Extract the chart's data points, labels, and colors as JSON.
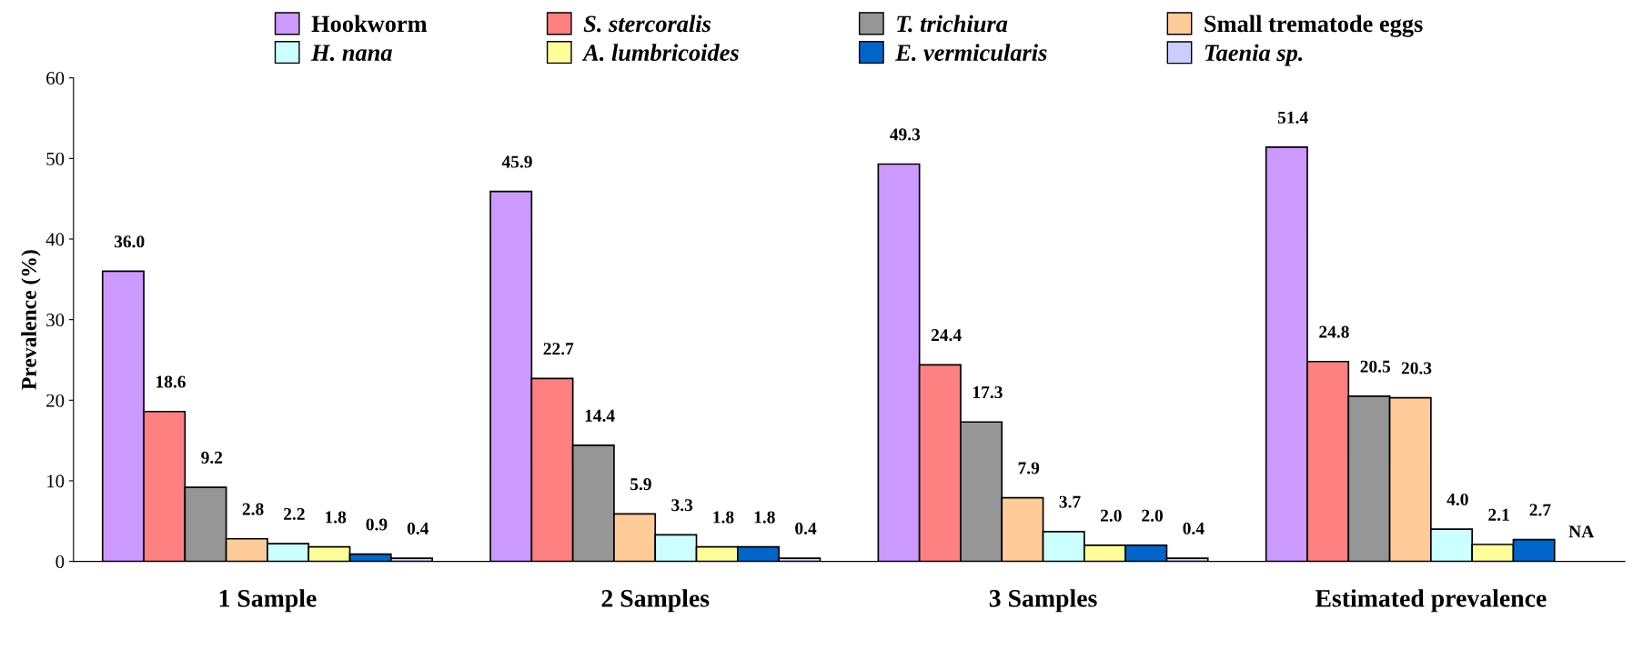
{
  "chart_data": {
    "type": "bar",
    "ylabel": "Prevalence (%)",
    "categories": [
      "1 Sample",
      "2 Samples",
      "3 Samples",
      "Estimated prevalence"
    ],
    "ylim": [
      0,
      60
    ],
    "yticks": [
      0,
      10,
      20,
      30,
      40,
      50,
      60
    ],
    "grid": false,
    "legend": "top",
    "series": [
      {
        "name": "Hookworm",
        "color": "#cc99ff",
        "values": [
          36.0,
          45.9,
          49.3,
          51.4
        ],
        "value_labels": [
          "36.0",
          "45.9",
          "49.3",
          "51.4"
        ]
      },
      {
        "name": "S. stercoralis",
        "color": "#ff8080",
        "values": [
          18.6,
          22.7,
          24.4,
          24.8
        ],
        "value_labels": [
          "18.6",
          "22.7",
          "24.4",
          "24.8"
        ]
      },
      {
        "name": "T. trichiura",
        "color": "#969696",
        "values": [
          9.2,
          14.4,
          17.3,
          20.5
        ],
        "value_labels": [
          "9.2",
          "14.4",
          "17.3",
          "20.5"
        ]
      },
      {
        "name": "Small trematode eggs",
        "color": "#ffcc99",
        "values": [
          2.8,
          5.9,
          7.9,
          20.3
        ],
        "value_labels": [
          "2.8",
          "5.9",
          "7.9",
          "20.3"
        ]
      },
      {
        "name": "H. nana",
        "color": "#ccffff",
        "values": [
          2.2,
          3.3,
          3.7,
          4.0
        ],
        "value_labels": [
          "2.2",
          "3.3",
          "3.7",
          "4.0"
        ]
      },
      {
        "name": "A. lumbricoides",
        "color": "#ffff99",
        "values": [
          1.8,
          1.8,
          2.0,
          2.1
        ],
        "value_labels": [
          "1.8",
          "1.8",
          "2.0",
          "2.1"
        ]
      },
      {
        "name": "E. vermicularis",
        "color": "#0066cc",
        "values": [
          0.9,
          1.8,
          2.0,
          2.7
        ],
        "value_labels": [
          "0.9",
          "1.8",
          "2.0",
          "2.7"
        ]
      },
      {
        "name": "Taenia sp.",
        "color": "#ccccff",
        "values": [
          0.4,
          0.4,
          0.4,
          null
        ],
        "value_labels": [
          "0.4",
          "0.4",
          "0.4",
          "NA"
        ]
      }
    ]
  }
}
